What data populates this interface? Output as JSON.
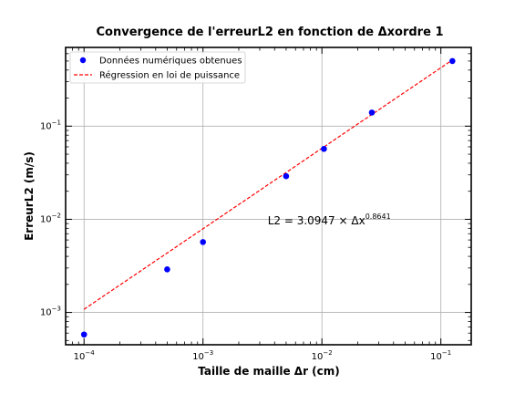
{
  "chart_data": {
    "type": "scatter",
    "title": "Convergence de l'erreurL2 en fonction de Δxordre 1",
    "xlabel": "Taille de maille Δr (cm)",
    "ylabel": "ErreurL2 (m/s)",
    "xscale": "log",
    "yscale": "log",
    "xlim": [
      7e-05,
      0.18
    ],
    "ylim": [
      0.00045,
      0.7
    ],
    "x_tick_labels": [
      {
        "value": 0.0001,
        "base": "10",
        "exp": "−4"
      },
      {
        "value": 0.001,
        "base": "10",
        "exp": "−3"
      },
      {
        "value": 0.01,
        "base": "10",
        "exp": "−2"
      },
      {
        "value": 0.1,
        "base": "10",
        "exp": "−1"
      }
    ],
    "y_tick_labels": [
      {
        "value": 0.001,
        "base": "10",
        "exp": "−3"
      },
      {
        "value": 0.01,
        "base": "10",
        "exp": "−2"
      },
      {
        "value": 0.1,
        "base": "10",
        "exp": "−1"
      }
    ],
    "grid": true,
    "legend_position": "top-left",
    "series": [
      {
        "name": "Données numériques obtenues",
        "kind": "scatter",
        "color": "#0000ff",
        "x": [
          0.0001,
          0.0005,
          0.001,
          0.005,
          0.0104,
          0.0263,
          0.125
        ],
        "y": [
          0.00058,
          0.0029,
          0.0057,
          0.029,
          0.057,
          0.14,
          0.5
        ]
      },
      {
        "name": "Régression en loi de puissance",
        "kind": "line",
        "color": "#ff0000",
        "coefficient": 3.0947,
        "exponent": 0.8641,
        "x_range": [
          0.0001,
          0.125
        ]
      }
    ],
    "annotation": {
      "prefix": "L2 = 3.0947 × Δx",
      "exp": "0.8641",
      "x": 0.0035,
      "y": 0.0088
    }
  }
}
